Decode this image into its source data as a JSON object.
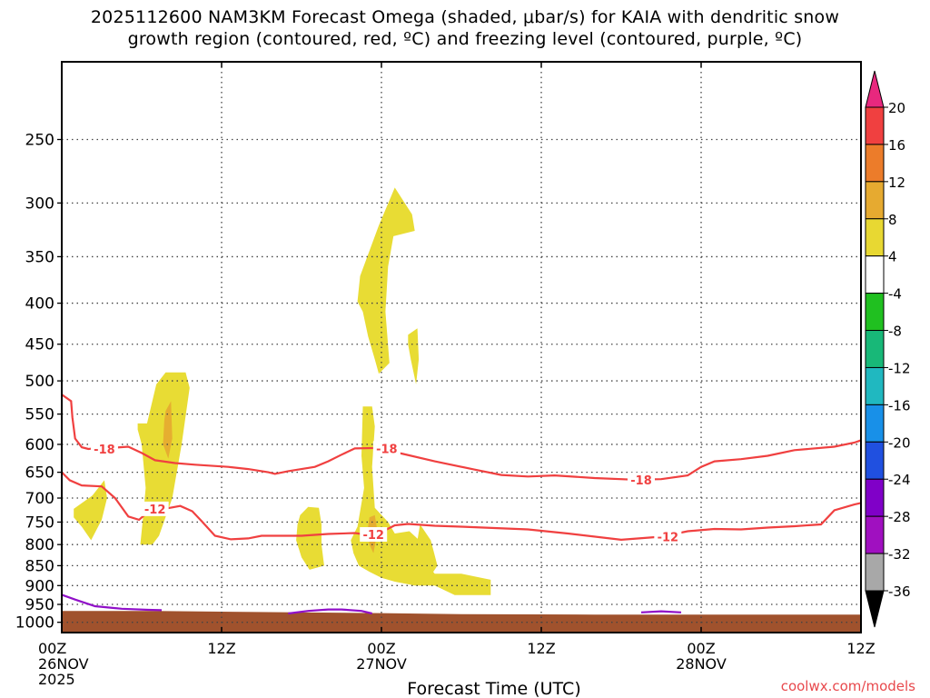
{
  "chart_data": {
    "type": "heatmap",
    "title_line1": "2025112600 NAM3KM Forecast Omega (shaded, μbar/s) for KAIA with dendritic snow",
    "title_line2": "growth region (contoured, red, ºC) and freezing level (contoured, purple, ºC)",
    "xlabel": "Forecast Time (UTC)",
    "ylabel": "",
    "credit": "coolwx.com/models",
    "x_range_hours": [
      0,
      60
    ],
    "y_range_hPa": [
      200,
      1030
    ],
    "y_scale": "log",
    "grid": "dotted",
    "x_ticks": [
      {
        "hour": 0,
        "lines": [
          "00Z",
          "26NOV",
          "2025"
        ]
      },
      {
        "hour": 12,
        "lines": [
          "12Z"
        ]
      },
      {
        "hour": 24,
        "lines": [
          "00Z",
          "27NOV"
        ]
      },
      {
        "hour": 36,
        "lines": [
          "12Z"
        ]
      },
      {
        "hour": 48,
        "lines": [
          "00Z",
          "28NOV"
        ]
      },
      {
        "hour": 60,
        "lines": [
          "12Z"
        ]
      }
    ],
    "y_ticks": [
      250,
      300,
      350,
      400,
      450,
      500,
      550,
      600,
      650,
      700,
      750,
      800,
      850,
      900,
      950,
      1000
    ],
    "colorbar": {
      "labels": [
        "20",
        "16",
        "12",
        "8",
        "4",
        "-4",
        "-8",
        "-12",
        "-16",
        "-20",
        "-24",
        "-28",
        "-32",
        "-36"
      ],
      "colors": [
        "#f04040",
        "#ec7c2a",
        "#e6aa30",
        "#e8d832",
        "#ffffff",
        "#20c020",
        "#18b878",
        "#20b8c0",
        "#1890e8",
        "#2050e0",
        "#8000c8",
        "#a010c0",
        "#a8a8a8"
      ],
      "top_arrow_color": "#e8287e",
      "bottom_arrow_color": "#000000"
    },
    "colors": {
      "omega_4_8": "#e8dc34",
      "omega_8_12": "#e6ae30",
      "dgz_line": "#f04040",
      "freezing_line": "#9010c8",
      "terrain": "#a0522d"
    },
    "omega_positive_regions": [
      {
        "band": "4-8",
        "points": [
          [
            0.9,
            722
          ],
          [
            2.3,
            695
          ],
          [
            3.2,
            665
          ],
          [
            3.4,
            700
          ],
          [
            3.0,
            745
          ],
          [
            2.2,
            790
          ],
          [
            1.5,
            760
          ],
          [
            0.9,
            740
          ]
        ]
      },
      {
        "band": "4-8",
        "points": [
          [
            5.7,
            565
          ],
          [
            6.4,
            565
          ],
          [
            7.1,
            505
          ],
          [
            7.8,
            488
          ],
          [
            9.3,
            488
          ],
          [
            9.6,
            510
          ],
          [
            9.0,
            600
          ],
          [
            8.3,
            700
          ],
          [
            7.3,
            780
          ],
          [
            6.8,
            800
          ],
          [
            5.9,
            800
          ],
          [
            6.1,
            740
          ],
          [
            6.3,
            680
          ],
          [
            6.0,
            600
          ],
          [
            5.7,
            575
          ]
        ]
      },
      {
        "band": "8-12",
        "points": [
          [
            7.8,
            545
          ],
          [
            8.2,
            530
          ],
          [
            8.3,
            590
          ],
          [
            8.0,
            625
          ],
          [
            7.6,
            600
          ],
          [
            7.7,
            560
          ]
        ]
      },
      {
        "band": "4-8",
        "points": [
          [
            17.9,
            735
          ],
          [
            18.5,
            718
          ],
          [
            19.3,
            720
          ],
          [
            19.5,
            755
          ],
          [
            19.5,
            800
          ],
          [
            19.7,
            850
          ],
          [
            18.6,
            860
          ],
          [
            18.0,
            830
          ],
          [
            17.6,
            790
          ],
          [
            17.7,
            755
          ]
        ]
      },
      {
        "band": "4-8",
        "points": [
          [
            22.6,
            538
          ],
          [
            23.3,
            538
          ],
          [
            23.5,
            570
          ],
          [
            23.3,
            640
          ],
          [
            23.5,
            720
          ],
          [
            24.5,
            750
          ],
          [
            25.0,
            775
          ],
          [
            26.1,
            770
          ],
          [
            27.2,
            800
          ],
          [
            27.5,
            850
          ],
          [
            28.0,
            870
          ],
          [
            30.0,
            870
          ],
          [
            32.2,
            885
          ],
          [
            32.2,
            925
          ],
          [
            29.5,
            925
          ],
          [
            28.0,
            900
          ],
          [
            26.5,
            900
          ],
          [
            25.0,
            890
          ],
          [
            24.0,
            880
          ],
          [
            23.1,
            865
          ],
          [
            22.3,
            850
          ],
          [
            21.9,
            820
          ],
          [
            21.7,
            790
          ],
          [
            22.2,
            760
          ],
          [
            22.7,
            680
          ],
          [
            22.5,
            620
          ]
        ]
      },
      {
        "band": "8-12",
        "points": [
          [
            23.1,
            740
          ],
          [
            23.5,
            735
          ],
          [
            23.7,
            770
          ],
          [
            23.4,
            820
          ],
          [
            23.1,
            800
          ],
          [
            23.0,
            760
          ]
        ]
      },
      {
        "band": "4-8",
        "points": [
          [
            26.9,
            755
          ],
          [
            27.7,
            790
          ],
          [
            28.2,
            850
          ],
          [
            27.8,
            870
          ],
          [
            27.2,
            860
          ],
          [
            26.8,
            820
          ],
          [
            26.7,
            790
          ]
        ]
      },
      {
        "band": "4-8",
        "points": [
          [
            22.4,
            370
          ],
          [
            23.8,
            320
          ],
          [
            25.0,
            287
          ],
          [
            26.3,
            310
          ],
          [
            26.5,
            325
          ],
          [
            24.9,
            330
          ],
          [
            24.5,
            360
          ],
          [
            24.3,
            410
          ],
          [
            24.6,
            475
          ],
          [
            23.8,
            490
          ],
          [
            23.5,
            470
          ],
          [
            23.0,
            440
          ],
          [
            22.6,
            410
          ],
          [
            22.2,
            398
          ]
        ]
      },
      {
        "band": "4-8",
        "points": [
          [
            26.0,
            438
          ],
          [
            26.7,
            430
          ],
          [
            26.8,
            470
          ],
          [
            26.6,
            505
          ],
          [
            26.2,
            470
          ],
          [
            26.0,
            450
          ]
        ]
      }
    ],
    "dgz_contours": [
      {
        "label": "-18",
        "label_at": [
          3.2,
          608
        ],
        "points": [
          [
            0,
            520
          ],
          [
            0.7,
            530
          ],
          [
            0.8,
            555
          ],
          [
            1.0,
            590
          ],
          [
            1.5,
            605
          ],
          [
            2.0,
            608
          ],
          [
            2.8,
            606
          ],
          [
            3.7,
            606
          ],
          [
            5.0,
            604
          ],
          [
            6.0,
            615
          ],
          [
            7.0,
            628
          ],
          [
            8.5,
            633
          ],
          [
            10.0,
            636
          ],
          [
            12.5,
            640
          ],
          [
            14.0,
            644
          ],
          [
            15.5,
            650
          ],
          [
            16.0,
            653
          ],
          [
            17.0,
            648
          ],
          [
            19.0,
            640
          ],
          [
            20.0,
            630
          ],
          [
            21.0,
            618
          ],
          [
            22.0,
            607
          ],
          [
            24.0,
            606
          ],
          [
            25.5,
            616
          ],
          [
            28.0,
            630
          ],
          [
            31.0,
            645
          ],
          [
            33.0,
            655
          ],
          [
            35.0,
            658
          ],
          [
            37.0,
            656
          ],
          [
            40.0,
            661
          ],
          [
            43.0,
            664
          ],
          [
            45.0,
            663
          ],
          [
            47.0,
            656
          ],
          [
            48.0,
            640
          ],
          [
            49.0,
            630
          ],
          [
            51.0,
            626
          ],
          [
            53.0,
            620
          ],
          [
            55.0,
            610
          ],
          [
            58.0,
            604
          ],
          [
            59.5,
            597
          ],
          [
            60,
            593
          ]
        ]
      },
      {
        "label": "-12",
        "label_at": [
          7.0,
          722
        ],
        "points": [
          [
            0,
            650
          ],
          [
            0.6,
            665
          ],
          [
            1.5,
            675
          ],
          [
            3.0,
            677
          ],
          [
            4.0,
            700
          ],
          [
            5.0,
            738
          ],
          [
            5.8,
            745
          ],
          [
            6.5,
            728
          ],
          [
            7.5,
            723
          ],
          [
            8.9,
            716
          ],
          [
            9.8,
            727
          ],
          [
            10.5,
            748
          ],
          [
            11.5,
            780
          ],
          [
            12.7,
            788
          ],
          [
            14.0,
            786
          ],
          [
            15.0,
            780
          ],
          [
            18.0,
            780
          ],
          [
            20.0,
            776
          ],
          [
            22.0,
            774
          ],
          [
            23.0,
            778
          ],
          [
            24.0,
            772
          ],
          [
            25.0,
            757
          ],
          [
            26.0,
            754
          ],
          [
            28.0,
            758
          ],
          [
            30.0,
            760
          ],
          [
            35.0,
            766
          ],
          [
            38.0,
            775
          ],
          [
            42.0,
            789
          ],
          [
            45.0,
            782
          ],
          [
            47.0,
            770
          ],
          [
            49.0,
            765
          ],
          [
            51.0,
            766
          ],
          [
            53.0,
            762
          ],
          [
            55.0,
            759
          ],
          [
            57.0,
            755
          ],
          [
            58.0,
            725
          ],
          [
            59.5,
            713
          ],
          [
            60,
            710
          ]
        ]
      }
    ],
    "freezing_contours": [
      {
        "label": "",
        "points": [
          [
            0,
            924
          ],
          [
            1.0,
            937
          ],
          [
            2.5,
            955
          ],
          [
            4.5,
            962
          ],
          [
            6.5,
            965
          ],
          [
            7.5,
            966
          ]
        ]
      },
      {
        "label": "",
        "points": [
          [
            17.0,
            975
          ],
          [
            18.5,
            968
          ],
          [
            20.0,
            964
          ],
          [
            21.0,
            964
          ],
          [
            22.5,
            968
          ],
          [
            23.3,
            975
          ]
        ]
      },
      {
        "label": "",
        "points": [
          [
            43.5,
            972
          ],
          [
            45.0,
            969
          ],
          [
            46.5,
            972
          ]
        ]
      }
    ],
    "terrain_top_hPa": [
      [
        0,
        968
      ],
      [
        7,
        968
      ],
      [
        12,
        970
      ],
      [
        24,
        974
      ],
      [
        30,
        977
      ],
      [
        40,
        978
      ],
      [
        50,
        978
      ],
      [
        60,
        978
      ]
    ]
  }
}
